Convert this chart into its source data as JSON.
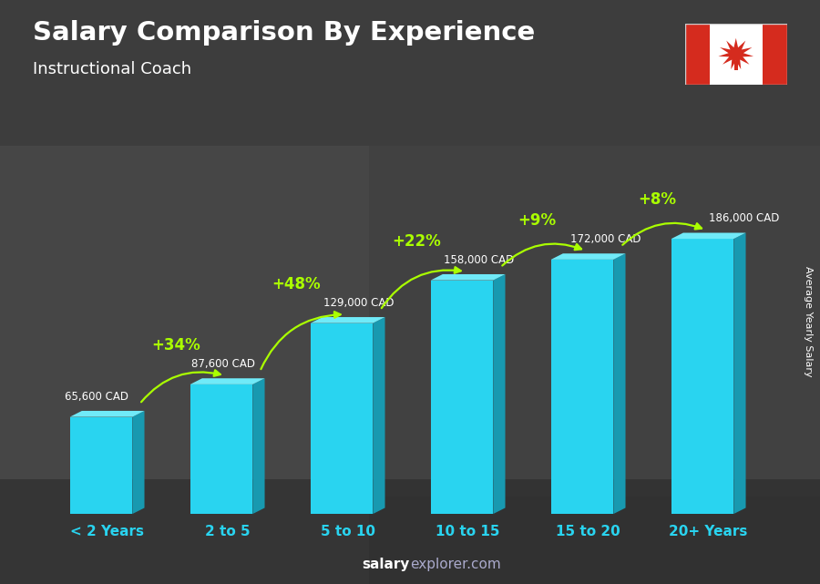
{
  "title": "Salary Comparison By Experience",
  "subtitle": "Instructional Coach",
  "categories": [
    "< 2 Years",
    "2 to 5",
    "5 to 10",
    "10 to 15",
    "15 to 20",
    "20+ Years"
  ],
  "values": [
    65600,
    87600,
    129000,
    158000,
    172000,
    186000
  ],
  "labels": [
    "65,600 CAD",
    "87,600 CAD",
    "129,000 CAD",
    "158,000 CAD",
    "172,000 CAD",
    "186,000 CAD"
  ],
  "pct_changes": [
    "+34%",
    "+48%",
    "+22%",
    "+9%",
    "+8%"
  ],
  "front_color": "#29d4f0",
  "top_color": "#70eaf8",
  "side_color": "#1899b0",
  "green_color": "#aaff00",
  "title_color": "#ffffff",
  "subtitle_color": "#ffffff",
  "label_color": "#ffffff",
  "ylabel": "Average Yearly Salary",
  "footer_salary": "salary",
  "footer_explorer": "explorer.com",
  "bg_color": "#3a3a3a"
}
